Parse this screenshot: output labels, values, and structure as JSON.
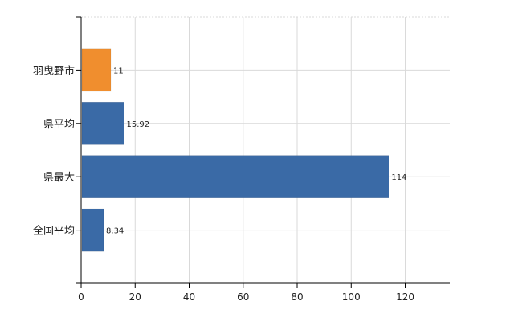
{
  "chart_data": {
    "type": "bar",
    "orientation": "horizontal",
    "categories": [
      "羽曳野市",
      "県平均",
      "県最大",
      "全国平均"
    ],
    "values": [
      11,
      15.92,
      114,
      8.34
    ],
    "data_labels": [
      "11",
      "15.92",
      "114",
      "8.34"
    ],
    "bar_colors": [
      "#f08e2e",
      "#3a6aa6",
      "#3a6aa6",
      "#3a6aa6"
    ],
    "xlim": [
      0,
      136.5
    ],
    "xticks": [
      0,
      20,
      40,
      60,
      80,
      100,
      120
    ],
    "xtick_labels": [
      "0",
      "20",
      "40",
      "60",
      "80",
      "100",
      "120"
    ],
    "grid": true,
    "legend": "none",
    "title": "",
    "xlabel": "",
    "ylabel": ""
  }
}
